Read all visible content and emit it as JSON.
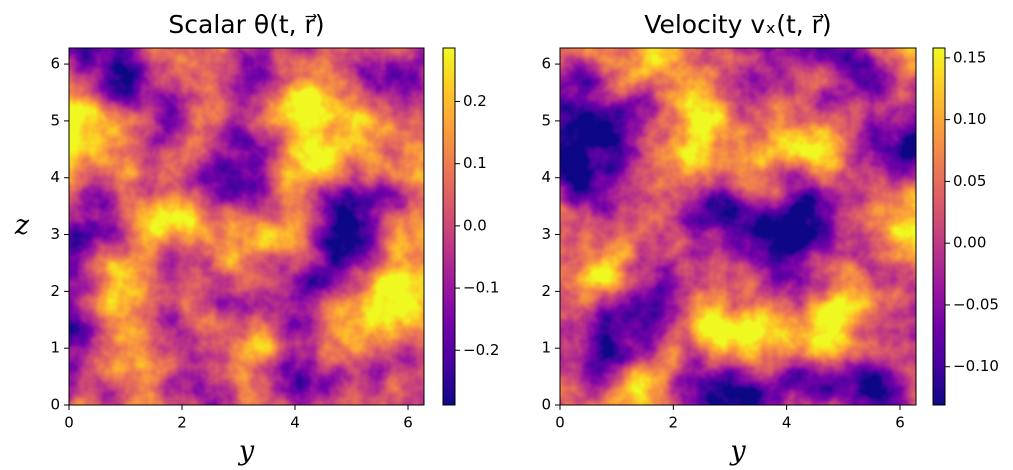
{
  "chart_data": [
    {
      "type": "heatmap",
      "title": "Scalar θ(t, r⃗)",
      "xlabel": "y",
      "ylabel": "z",
      "xlim": [
        0,
        6.283
      ],
      "ylim": [
        0,
        6.283
      ],
      "xticks": [
        0,
        2,
        4,
        6
      ],
      "yticks": [
        0,
        1,
        2,
        3,
        4,
        5,
        6
      ],
      "clim": [
        -0.288,
        0.286
      ],
      "cticks": [
        {
          "value": -0.2,
          "label": "−0.2"
        },
        {
          "value": -0.1,
          "label": "−0.1"
        },
        {
          "value": 0,
          "label": "0.0"
        },
        0.1,
        0.2
      ],
      "colormap": [
        "#0d0887",
        "#46039f",
        "#7201a8",
        "#9c179e",
        "#bd3786",
        "#d8576b",
        "#ed7953",
        "#fb9f3a",
        "#fdca26",
        "#f0f921"
      ]
    },
    {
      "type": "heatmap",
      "title": "Velocity vₓ(t, r⃗)",
      "xlabel": "y",
      "xlim": [
        0,
        6.283
      ],
      "ylim": [
        0,
        6.283
      ],
      "xticks": [
        0,
        2,
        4,
        6
      ],
      "yticks": [
        0,
        1,
        2,
        3,
        4,
        5,
        6
      ],
      "clim": [
        -0.131,
        0.158
      ],
      "cticks": [
        {
          "value": -0.1,
          "label": "−0.10"
        },
        {
          "value": -0.05,
          "label": "−0.05"
        },
        {
          "value": 0,
          "label": "0.00"
        },
        0.05,
        {
          "value": 0.1,
          "label": "0.10"
        },
        0.15
      ],
      "colormap": [
        "#0d0887",
        "#46039f",
        "#7201a8",
        "#9c179e",
        "#bd3786",
        "#d8576b",
        "#ed7953",
        "#fb9f3a",
        "#fdca26",
        "#f0f921"
      ]
    }
  ]
}
